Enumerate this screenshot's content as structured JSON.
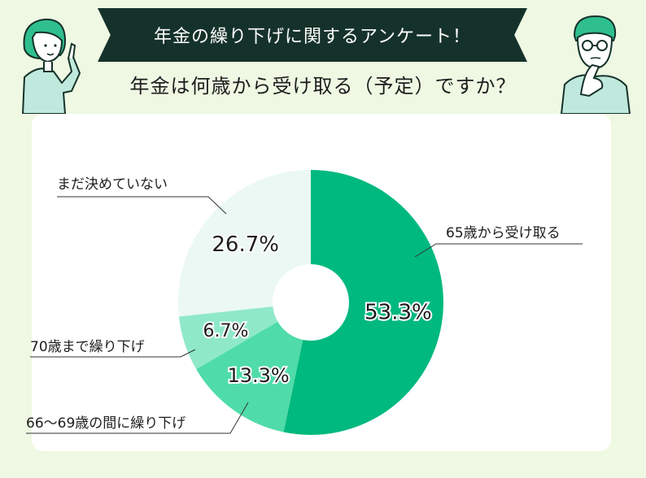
{
  "header": {
    "banner_title": "年金の繰り下げに関するアンケート！",
    "question": "年金は何歳から受け取る（予定）ですか？"
  },
  "chart_data": {
    "type": "pie",
    "donut": true,
    "title": "年金は何歳から受け取る（予定）ですか？",
    "categories": [
      "65歳から受け取る",
      "66〜69歳の間に繰り下げ",
      "70歳まで繰り下げ",
      "まだ決めていない"
    ],
    "values": [
      53.3,
      13.3,
      6.7,
      26.7
    ],
    "value_labels": [
      "53.3%",
      "13.3%",
      "6.7%",
      "26.7%"
    ],
    "colors": [
      "#00b97f",
      "#4fdca9",
      "#8fe9c9",
      "#ebf8f3"
    ],
    "legend": "callout-labels"
  },
  "illustrations": {
    "left": "woman-pointing-illustration",
    "right": "man-thinking-illustration"
  }
}
